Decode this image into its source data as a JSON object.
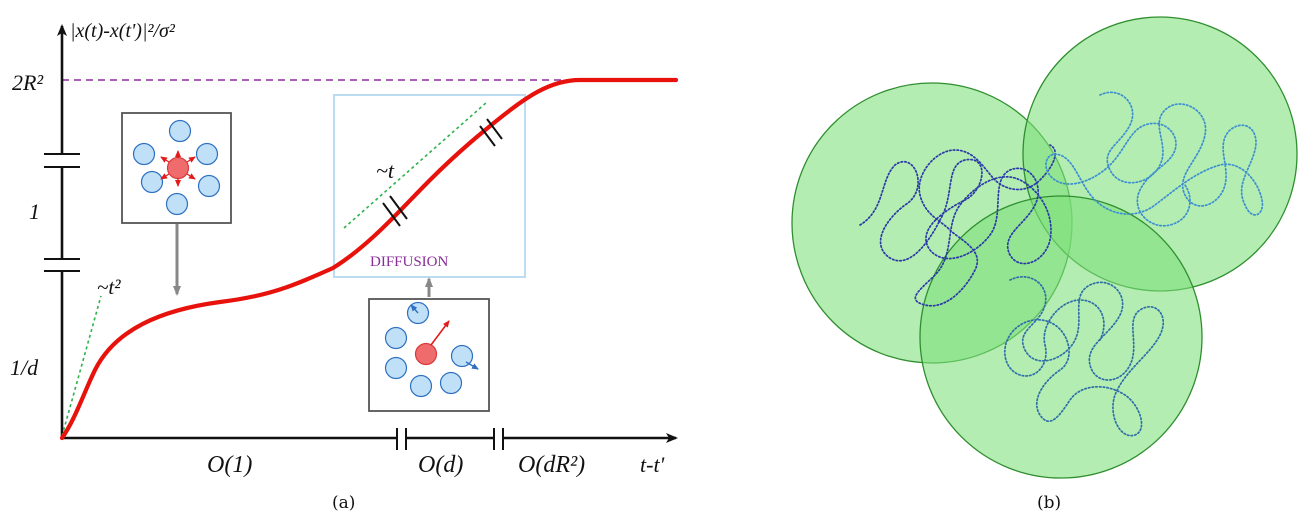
{
  "panel_a": {
    "caption": "(a)",
    "y_axis_label": "|x(t)-x(t')|²/σ²",
    "x_axis_label": "t-t'",
    "y_ticks": {
      "top": "2R²",
      "gap": "1",
      "low": "1/d"
    },
    "x_regions": [
      "O(1)",
      "O(d)",
      "O(dR²)"
    ],
    "annotations": {
      "ballistic": "~t²",
      "linear": "~t",
      "diffusion": "DIFFUSION"
    },
    "colors": {
      "msd_curve": "#e8120c",
      "plateau_line": "#8a2c9a",
      "guide_lines": "#2bb24c",
      "particles": "#bfe0f7",
      "tagged_particle": "#f06b6b",
      "diffusion_box": "#bcdcf2"
    }
  },
  "panel_b": {
    "caption": "(b)",
    "colors": {
      "disk_fill": "#7ee07a",
      "disk_stroke": "#2f8f2f",
      "trajectory_1": "#2a3aa8",
      "trajectory_2": "#3d8fd0",
      "trajectory_3": "#2f6fa8"
    }
  }
}
